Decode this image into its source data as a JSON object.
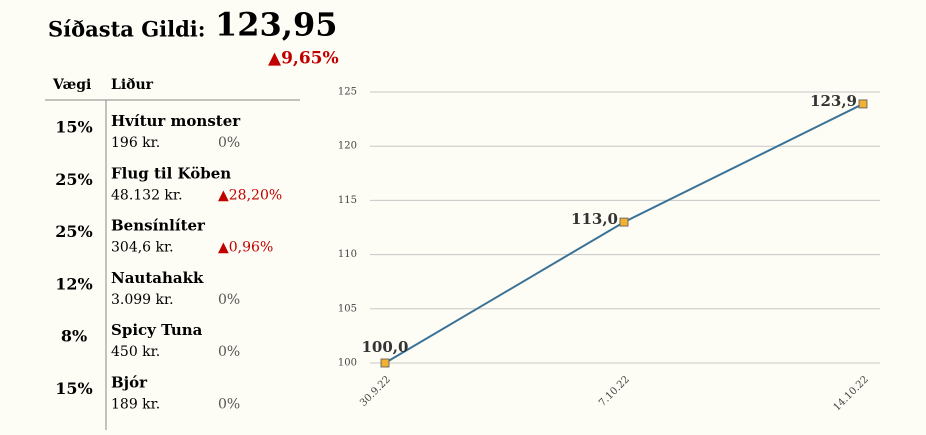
{
  "header": {
    "label": "Síðasta Gildi:",
    "value": "123,95",
    "change": "▲9,65%"
  },
  "table": {
    "columns": [
      "Vægi",
      "Liður"
    ],
    "rows": [
      {
        "weight": "15%",
        "name": "Hvítur monster",
        "price": "196 kr.",
        "change": "0%"
      },
      {
        "weight": "25%",
        "name": "Flug til Köben",
        "price": "48.132 kr.",
        "change": "▲28,20%"
      },
      {
        "weight": "25%",
        "name": "Bensínlíter",
        "price": "304,6 kr.",
        "change": "▲0,96%"
      },
      {
        "weight": "12%",
        "name": "Nautahakk",
        "price": "3.099 kr.",
        "change": "0%"
      },
      {
        "weight": "8%",
        "name": "Spicy Tuna",
        "price": "450 kr.",
        "change": "0%"
      },
      {
        "weight": "15%",
        "name": "Bjór",
        "price": "189 kr.",
        "change": "0%"
      }
    ]
  },
  "chart_data": {
    "type": "line",
    "categories": [
      "30.9.22",
      "7.10.22",
      "14.10.22"
    ],
    "values": [
      100.0,
      113.0,
      123.9
    ],
    "value_labels": [
      "100,0",
      "113,0",
      "123,9"
    ],
    "color": "#3b7398",
    "marker_color": "#f2b132",
    "ylim": [
      100,
      125
    ],
    "yticks": [
      100,
      105,
      110,
      115,
      120,
      125
    ],
    "grid": true
  }
}
